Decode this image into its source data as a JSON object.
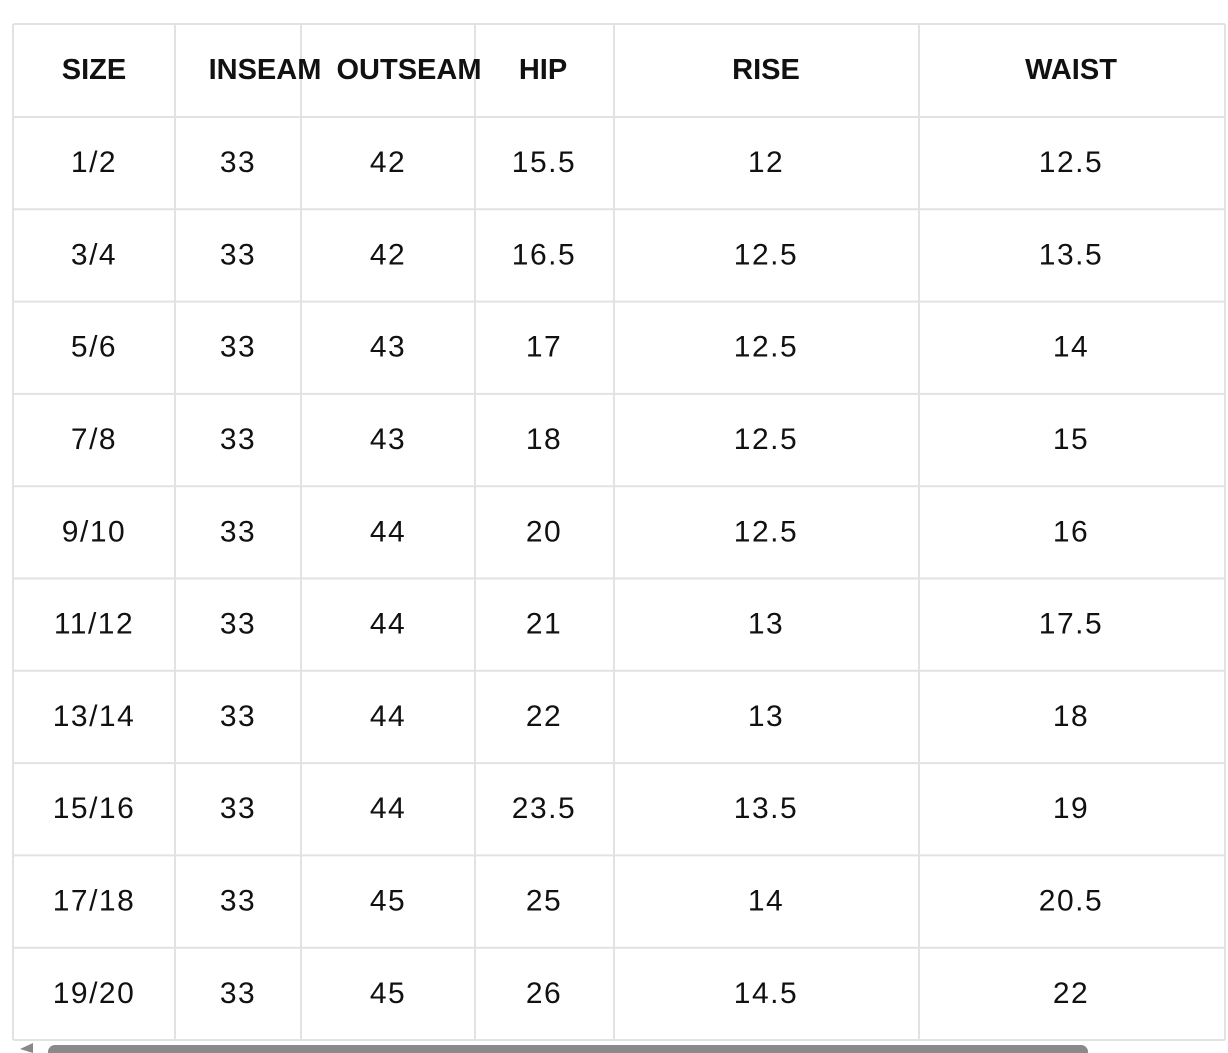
{
  "table": {
    "header": [
      "SIZE",
      "INSEAM",
      "OUTSEAM",
      "HIP",
      "RISE",
      "WAIST"
    ],
    "rows": [
      [
        "1/2",
        33,
        42,
        15.5,
        12,
        12.5
      ],
      [
        "3/4",
        33,
        42,
        16.5,
        12.5,
        13.5
      ],
      [
        "5/6",
        33,
        43,
        17,
        12.5,
        14
      ],
      [
        "7/8",
        33,
        43,
        18,
        12.5,
        15
      ],
      [
        "9/10",
        33,
        44,
        20,
        12.5,
        16
      ],
      [
        "11/12",
        33,
        44,
        21,
        13,
        17.5
      ],
      [
        "13/14",
        33,
        44,
        22,
        13,
        18
      ],
      [
        "15/16",
        33,
        44,
        23.5,
        13.5,
        19
      ],
      [
        "17/18",
        33,
        45,
        25,
        14,
        20.5
      ],
      [
        "19/20",
        33,
        45,
        26,
        14.5,
        22
      ]
    ]
  }
}
